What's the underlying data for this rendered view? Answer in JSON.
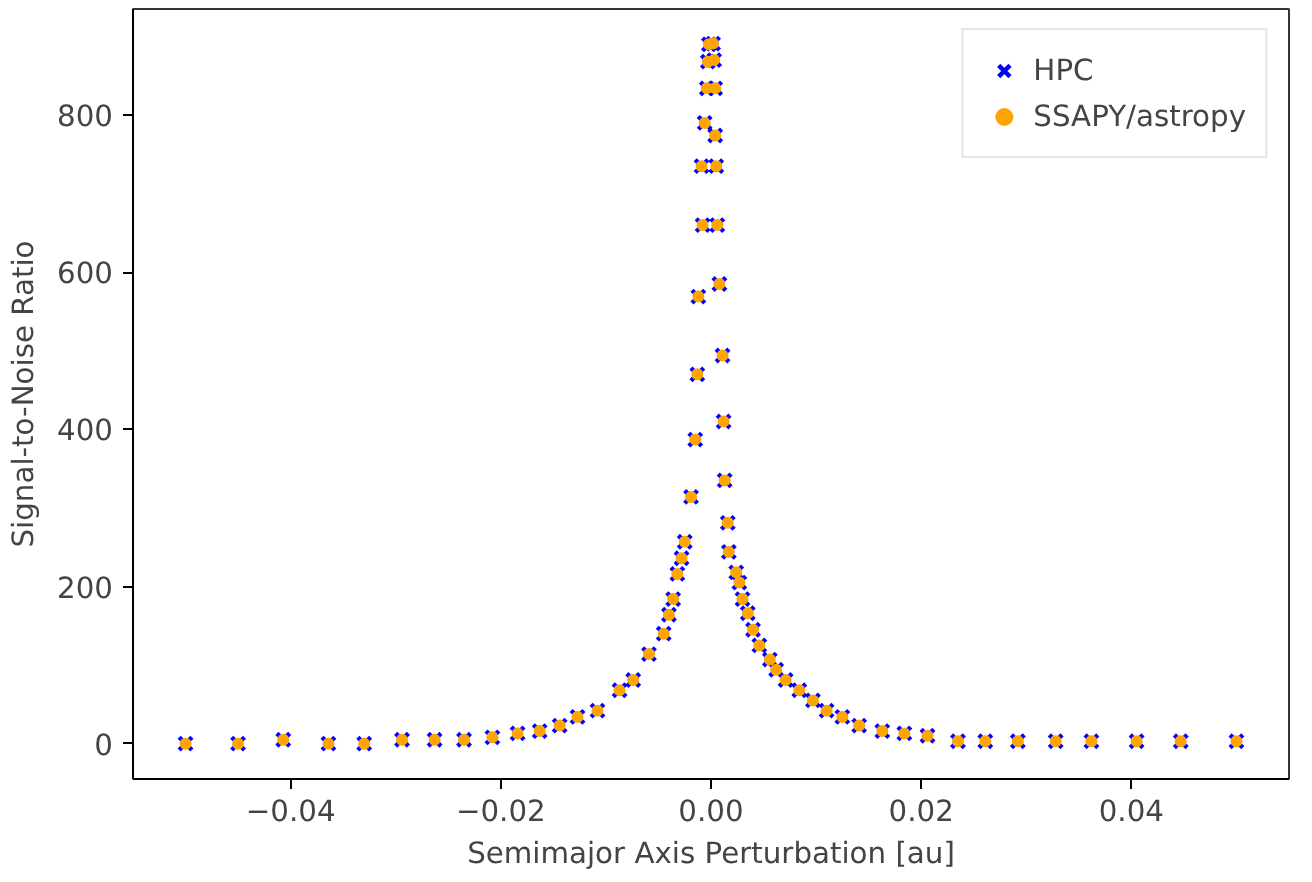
{
  "chart_data": {
    "type": "scatter",
    "xlabel": "Semimajor Axis Perturbation [au]",
    "ylabel": "Signal-to-Noise Ratio",
    "x": [
      -0.05,
      -0.045,
      -0.0407,
      -0.0364,
      -0.033,
      -0.0294,
      -0.0263,
      -0.0235,
      -0.0208,
      -0.0184,
      -0.0163,
      -0.0144,
      -0.0127,
      -0.0108,
      -0.0087,
      -0.0074,
      -0.0059,
      -0.0045,
      -0.004,
      -0.0036,
      -0.0032,
      -0.0028,
      -0.0025,
      -0.0019,
      -0.0015,
      -0.0013,
      -0.0012,
      -0.0009,
      -0.0008,
      -0.0006,
      -0.0004,
      -0.0003,
      -0.0002,
      0.0002,
      0.0003,
      0.0004,
      0.0004,
      0.0005,
      0.0006,
      0.0008,
      0.0011,
      0.0012,
      0.0013,
      0.0016,
      0.0017,
      0.0024,
      0.0027,
      0.003,
      0.0035,
      0.004,
      0.0046,
      0.0056,
      0.0062,
      0.0071,
      0.0084,
      0.0097,
      0.011,
      0.0125,
      0.0141,
      0.0163,
      0.0184,
      0.0206,
      0.0235,
      0.0261,
      0.0292,
      0.0328,
      0.0362,
      0.0405,
      0.0447,
      0.05
    ],
    "series": [
      {
        "name": "HPC",
        "color": "#0000ff",
        "marker": "cross",
        "values": [
          0,
          0,
          5,
          0,
          0,
          5,
          5,
          5,
          8,
          13,
          16,
          23,
          34,
          42,
          68,
          81,
          114,
          140,
          164,
          184,
          216,
          236,
          257,
          314,
          387,
          470,
          569,
          735,
          660,
          790,
          834,
          868,
          890,
          891,
          870,
          834,
          774,
          735,
          660,
          585,
          494,
          410,
          335,
          281,
          244,
          218,
          205,
          184,
          166,
          145,
          125,
          107,
          94,
          81,
          68,
          55,
          42,
          34,
          23,
          16,
          13,
          10,
          3,
          3,
          3,
          3,
          3,
          3,
          3,
          3
        ]
      },
      {
        "name": "SSAPY/astropy",
        "color": "#ffa500",
        "marker": "circle",
        "values": [
          0,
          0,
          5,
          0,
          0,
          5,
          5,
          5,
          8,
          13,
          16,
          23,
          34,
          42,
          68,
          81,
          114,
          140,
          164,
          184,
          216,
          236,
          257,
          314,
          387,
          470,
          569,
          735,
          660,
          790,
          834,
          868,
          890,
          891,
          870,
          834,
          774,
          735,
          660,
          585,
          494,
          410,
          335,
          281,
          244,
          218,
          205,
          184,
          166,
          145,
          125,
          107,
          94,
          81,
          68,
          55,
          42,
          34,
          23,
          16,
          13,
          10,
          3,
          3,
          3,
          3,
          3,
          3,
          3,
          3
        ]
      }
    ],
    "xlim": [
      -0.055,
      0.055
    ],
    "ylim": [
      -45,
      935
    ],
    "xticks": [
      {
        "value": -0.04,
        "label": "−0.04"
      },
      {
        "value": -0.02,
        "label": "−0.02"
      },
      {
        "value": 0,
        "label": "0.00"
      },
      {
        "value": 0.02,
        "label": "0.02"
      },
      {
        "value": 0.04,
        "label": "0.04"
      }
    ],
    "yticks": [
      0,
      200,
      400,
      600,
      800
    ],
    "grid": false,
    "legend": "top right"
  }
}
